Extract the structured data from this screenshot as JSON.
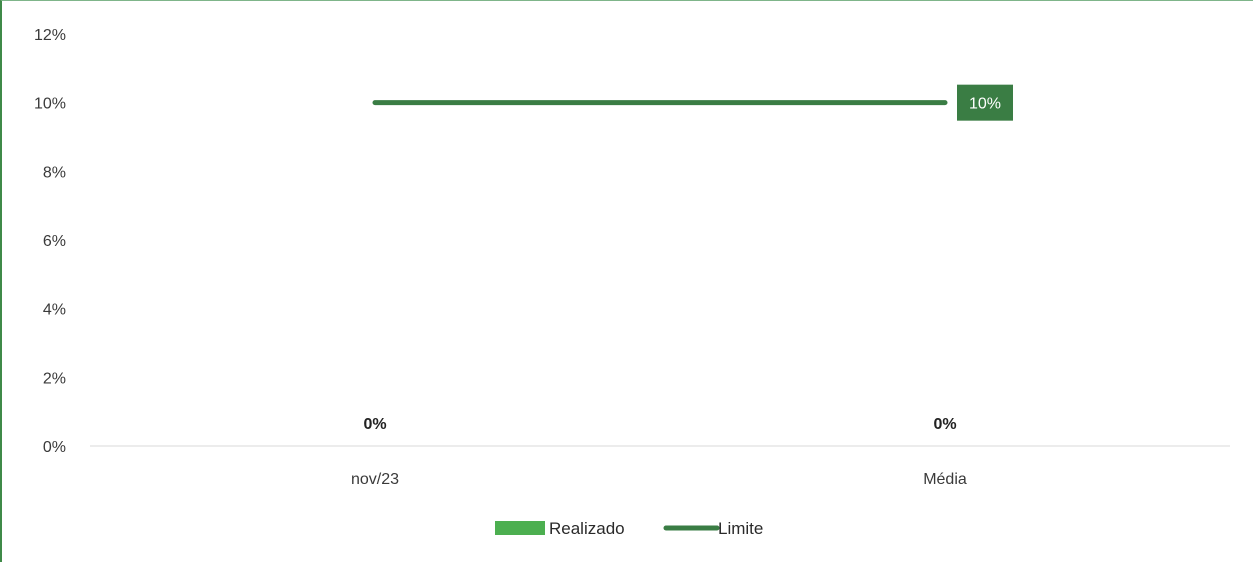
{
  "chart_data": {
    "type": "bar",
    "categories": [
      "nov/23",
      "Média"
    ],
    "series": [
      {
        "name": "Realizado",
        "kind": "bar",
        "values": [
          0,
          0
        ],
        "data_labels": [
          "0%",
          "0%"
        ],
        "color": "#4caf50"
      },
      {
        "name": "Limite",
        "kind": "line",
        "values": [
          10,
          10
        ],
        "end_label": "10%",
        "color": "#3a7d44"
      }
    ],
    "ylim": [
      0,
      12
    ],
    "yticks": [
      0,
      2,
      4,
      6,
      8,
      10,
      12
    ],
    "ytick_labels": [
      "0%",
      "2%",
      "4%",
      "6%",
      "8%",
      "10%",
      "12%"
    ],
    "grid": false,
    "legend_position": "bottom-center"
  }
}
